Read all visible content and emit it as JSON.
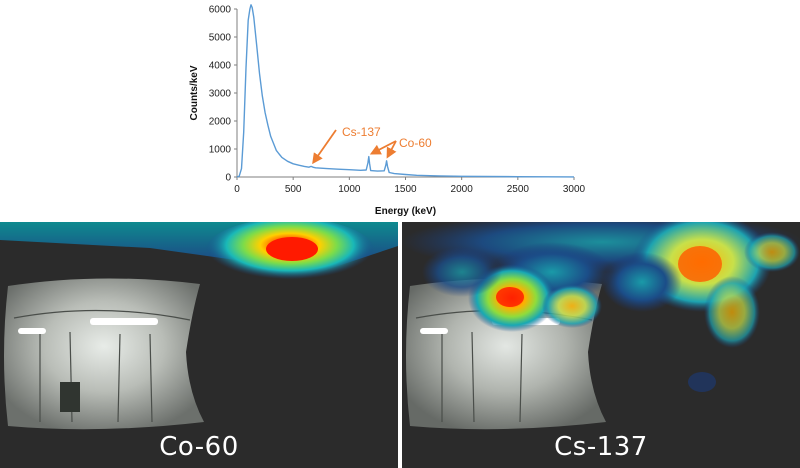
{
  "chart_data": {
    "type": "line",
    "xlabel": "Energy (keV)",
    "ylabel": "Counts/keV",
    "xlim": [
      0,
      3000
    ],
    "ylim": [
      0,
      6000
    ],
    "x_ticks": [
      0,
      500,
      1000,
      1500,
      2000,
      2500,
      3000
    ],
    "y_ticks": [
      0,
      1000,
      2000,
      3000,
      4000,
      5000,
      6000
    ],
    "grid": false,
    "series": [
      {
        "color": "#5b9bd5",
        "points": [
          [
            0,
            0
          ],
          [
            20,
            30
          ],
          [
            40,
            300
          ],
          [
            60,
            1600
          ],
          [
            80,
            3900
          ],
          [
            100,
            5600
          ],
          [
            115,
            6000
          ],
          [
            125,
            6150
          ],
          [
            135,
            6050
          ],
          [
            150,
            5700
          ],
          [
            175,
            4700
          ],
          [
            200,
            3700
          ],
          [
            225,
            2900
          ],
          [
            250,
            2300
          ],
          [
            275,
            1850
          ],
          [
            300,
            1450
          ],
          [
            325,
            1200
          ],
          [
            350,
            950
          ],
          [
            375,
            820
          ],
          [
            400,
            700
          ],
          [
            450,
            560
          ],
          [
            500,
            470
          ],
          [
            550,
            420
          ],
          [
            600,
            380
          ],
          [
            640,
            350
          ],
          [
            660,
            380
          ],
          [
            680,
            345
          ],
          [
            700,
            330
          ],
          [
            800,
            300
          ],
          [
            900,
            280
          ],
          [
            1000,
            260
          ],
          [
            1100,
            240
          ],
          [
            1150,
            250
          ],
          [
            1165,
            500
          ],
          [
            1173,
            730
          ],
          [
            1180,
            480
          ],
          [
            1190,
            230
          ],
          [
            1250,
            210
          ],
          [
            1310,
            220
          ],
          [
            1325,
            420
          ],
          [
            1332,
            580
          ],
          [
            1340,
            380
          ],
          [
            1355,
            160
          ],
          [
            1400,
            120
          ],
          [
            1500,
            90
          ],
          [
            1600,
            60
          ],
          [
            1800,
            40
          ],
          [
            2000,
            25
          ],
          [
            2500,
            12
          ],
          [
            3000,
            5
          ]
        ]
      }
    ],
    "annotations": [
      {
        "text": "Cs-137",
        "target": [
          662,
          380
        ]
      },
      {
        "text": "Co-60",
        "targets": [
          [
            1173,
            730
          ],
          [
            1332,
            580
          ]
        ]
      }
    ]
  },
  "images": {
    "left_caption": "Co-60",
    "right_caption": "Cs-137"
  },
  "colors": {
    "spectrum_line": "#5b9bd5",
    "annotation": "#ed7d31",
    "axis": "#7f7f7f",
    "panel_background": "#2b2b2b"
  }
}
